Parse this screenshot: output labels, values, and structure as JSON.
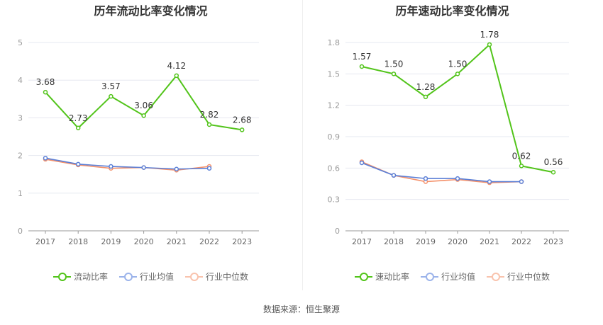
{
  "source": "数据来源：恒生聚源",
  "chart_data": [
    {
      "type": "line",
      "title": "历年流动比率变化情况",
      "categories": [
        "2017",
        "2018",
        "2019",
        "2020",
        "2021",
        "2022",
        "2023"
      ],
      "ylim": [
        0,
        5
      ],
      "yticks": [
        "0",
        "1",
        "2",
        "3",
        "4",
        "5"
      ],
      "grid": true,
      "legend_position": "bottom",
      "series": [
        {
          "name": "流动比率",
          "color": "#52c41a",
          "values": [
            3.68,
            2.73,
            3.57,
            3.06,
            4.12,
            2.82,
            2.68
          ],
          "labels": [
            "3.68",
            "2.73",
            "3.57",
            "3.06",
            "4.12",
            "2.82",
            "2.68"
          ]
        },
        {
          "name": "行业均值",
          "color": "#5b7fd6",
          "values": [
            1.93,
            1.77,
            1.71,
            1.68,
            1.64,
            1.66,
            null
          ]
        },
        {
          "name": "行业中位数",
          "color": "#f4916b",
          "values": [
            1.9,
            1.75,
            1.66,
            1.68,
            1.61,
            1.71,
            null
          ]
        }
      ]
    },
    {
      "type": "line",
      "title": "历年速动比率变化情况",
      "categories": [
        "2017",
        "2018",
        "2019",
        "2020",
        "2021",
        "2022",
        "2023"
      ],
      "ylim": [
        0,
        1.8
      ],
      "yticks": [
        "0",
        "0.3",
        "0.6",
        "0.9",
        "1.2",
        "1.5",
        "1.8"
      ],
      "grid": true,
      "legend_position": "bottom",
      "series": [
        {
          "name": "速动比率",
          "color": "#52c41a",
          "values": [
            1.57,
            1.5,
            1.28,
            1.5,
            1.78,
            0.62,
            0.56
          ],
          "labels": [
            "1.57",
            "1.50",
            "1.28",
            "1.50",
            "1.78",
            "0.62",
            "0.56"
          ]
        },
        {
          "name": "行业均值",
          "color": "#5b7fd6",
          "values": [
            0.65,
            0.53,
            0.5,
            0.5,
            0.47,
            0.47,
            null
          ]
        },
        {
          "name": "行业中位数",
          "color": "#f4916b",
          "values": [
            0.66,
            0.53,
            0.47,
            0.49,
            0.46,
            0.47,
            null
          ]
        }
      ]
    }
  ]
}
